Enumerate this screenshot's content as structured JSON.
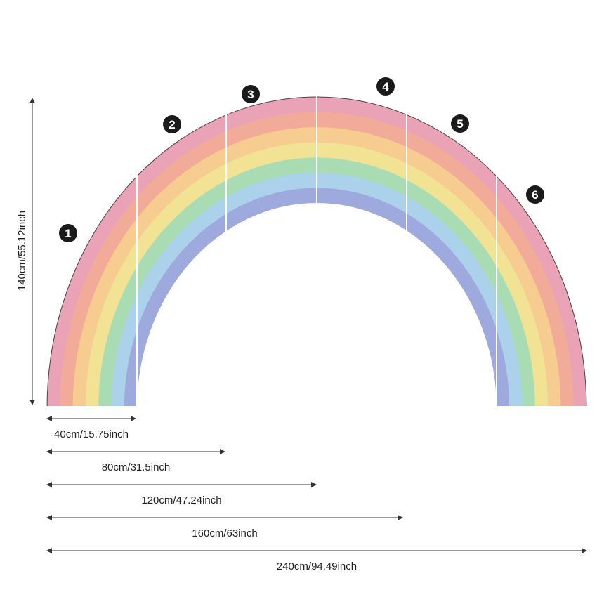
{
  "panels": [
    "1",
    "2",
    "3",
    "4",
    "5",
    "6"
  ],
  "dimensions": {
    "height": "140cm/55.12inch",
    "widths": [
      "40cm/15.75inch",
      "80cm/31.5inch",
      "120cm/47.24inch",
      "160cm/63inch",
      "240cm/94.49inch"
    ]
  }
}
